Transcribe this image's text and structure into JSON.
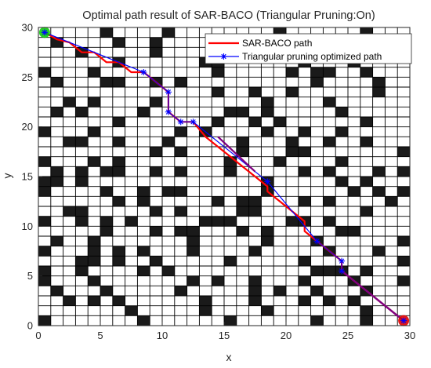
{
  "chart_data": {
    "type": "line",
    "title": "Optimal path result of SAR-BACO (Triangular Pruning:On)",
    "xlabel": "x",
    "ylabel": "y",
    "xlim": [
      0,
      30
    ],
    "ylim": [
      0,
      30
    ],
    "xticks": [
      "0",
      "5",
      "10",
      "15",
      "20",
      "25",
      "30"
    ],
    "yticks": [
      "0",
      "5",
      "10",
      "15",
      "20",
      "25",
      "30"
    ],
    "grid_size": 30,
    "grid": true,
    "legend_position": "top-right",
    "colors": {
      "obstacle": "#1a1a1a",
      "free": "#ffffff",
      "grid_line": "#000000",
      "sarbaco": "#ff0000",
      "pruned": "#0000ff",
      "overlap": "#7f007f",
      "start": "#00c800",
      "goal": "#e00000"
    },
    "obstacle_rows": [
      "000001000010000000010000001000",
      "010000100100000001000010000010",
      "000100000100001010100100100000",
      "000000100000011000000100010000",
      "100010000000001000001011001000",
      "010001100101000000000010000100",
      "000000000000001001001000000100",
      "001010000100000000100001000000",
      "010100001000000110100000100000",
      "000000100000001001010000001000",
      "100010000001010000100100100000",
      "001100100010000010001001001000",
      "000000000101000010001100000001",
      "100010100000000100010000100000",
      "010101100101000100000101000101",
      "110100000000000000100000101000",
      "100001001011000000100000010101",
      "000000101000001011000101000010",
      "001100000101000011000000001000",
      "100101010000011100001101000000",
      "000001000101100010100000110000",
      "010010000000100000100010000001",
      "100010101000100001000001000100",
      "000110100100000100000100000001",
      "100100001010000000000011101000",
      "100010000000101001000100010001",
      "010001000001000001010010001000",
      "001010100000010001000101010000",
      "000000010000010000100000001000",
      "100000001000000100000010001000"
    ],
    "series": [
      {
        "name": "SAR-BACO path",
        "x": [
          0.5,
          1.5,
          2.5,
          3.5,
          4.5,
          5.5,
          6.5,
          7.5,
          8.5,
          9.5,
          10.5,
          10.5,
          11.5,
          12.5,
          13.5,
          14.5,
          15.5,
          16.5,
          17.5,
          18.5,
          18.5,
          19.5,
          20.5,
          21.5,
          21.5,
          22.5,
          23.5,
          24.5,
          24.5,
          25.5,
          26.5,
          27.5,
          28.5,
          29.5
        ],
        "y": [
          29.5,
          28.8,
          28.5,
          27.5,
          27.5,
          26.5,
          26.5,
          25.5,
          25.5,
          24.5,
          23.5,
          21.5,
          20.5,
          20.5,
          19.0,
          18.0,
          17.0,
          16.0,
          15.0,
          14.0,
          13.5,
          12.5,
          11.5,
          10.5,
          9.5,
          8.5,
          7.5,
          6.5,
          5.5,
          4.5,
          3.5,
          2.5,
          1.5,
          0.5
        ]
      },
      {
        "name": "Triangular pruning optimized path",
        "x": [
          0.5,
          8.5,
          10.5,
          10.5,
          11.5,
          12.5,
          18.5,
          22.5,
          24.5,
          24.5,
          29.5
        ],
        "y": [
          29.5,
          25.5,
          23.5,
          21.5,
          20.5,
          20.5,
          14.5,
          8.5,
          6.5,
          5.5,
          0.5
        ]
      }
    ],
    "start": [
      0.5,
      29.5
    ],
    "goal": [
      29.5,
      0.5
    ]
  }
}
